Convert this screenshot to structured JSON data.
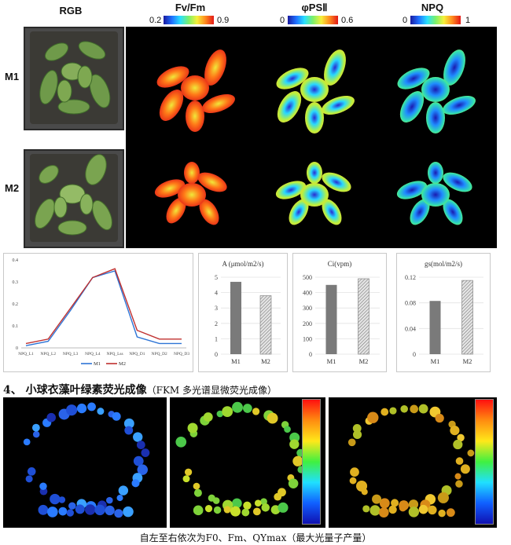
{
  "top": {
    "col_headers": [
      "RGB",
      "Fv/Fm",
      "φPSⅡ",
      "NPQ"
    ],
    "colorbars": [
      {
        "min": "0.2",
        "max": "0.9"
      },
      {
        "min": "0",
        "max": "0.6"
      },
      {
        "min": "0",
        "max": "1"
      }
    ],
    "row_labels": [
      "M1",
      "M2"
    ]
  },
  "section_title": "4、 小球衣藻叶绿素荧光成像（FKM 多光谱显微荧光成像）",
  "section_title_main": "4、 小球衣藻叶绿素荧光成像",
  "section_title_sub": "（FKM 多光谱显微荧光成像）",
  "caption": "自左至右依次为F0、Fm、QYmax（最大光量子产量）",
  "chart_data": [
    {
      "type": "line",
      "categories": [
        "NPQ_L1",
        "NPQ_L2",
        "NPQ_L3",
        "NPQ_L4",
        "NPQ_Lss",
        "NPQ_D1",
        "NPQ_D2",
        "NPQ_D3"
      ],
      "series": [
        {
          "name": "M1",
          "color": "#2e75d6",
          "values": [
            0.01,
            0.03,
            0.17,
            0.32,
            0.35,
            0.05,
            0.02,
            0.02
          ]
        },
        {
          "name": "M2",
          "color": "#c0302f",
          "values": [
            0.02,
            0.04,
            0.18,
            0.32,
            0.36,
            0.08,
            0.04,
            0.04
          ]
        }
      ],
      "yticks": [
        "0",
        "0.1",
        "0.2",
        "0.3",
        "0.4"
      ],
      "ylim": [
        0,
        0.4
      ],
      "legend": "bottom"
    },
    {
      "type": "bar",
      "title": "A (μmol/m2/s)",
      "categories": [
        "M1",
        "M2"
      ],
      "values": [
        4.7,
        3.8
      ],
      "yticks": [
        "0",
        "1",
        "2",
        "3",
        "4",
        "5"
      ],
      "ylim": [
        0,
        5
      ]
    },
    {
      "type": "bar",
      "title": "Ci(vpm)",
      "categories": [
        "M1",
        "M2"
      ],
      "values": [
        450,
        490
      ],
      "yticks": [
        "0",
        "100",
        "200",
        "300",
        "400",
        "500"
      ],
      "ylim": [
        0,
        500
      ]
    },
    {
      "type": "bar",
      "title": "gs(mol/m2/s)",
      "categories": [
        "M1",
        "M2"
      ],
      "values": [
        0.083,
        0.115
      ],
      "yticks": [
        "0",
        "0.04",
        "0.08",
        "0.12"
      ],
      "ylim": [
        0,
        0.12
      ]
    }
  ]
}
